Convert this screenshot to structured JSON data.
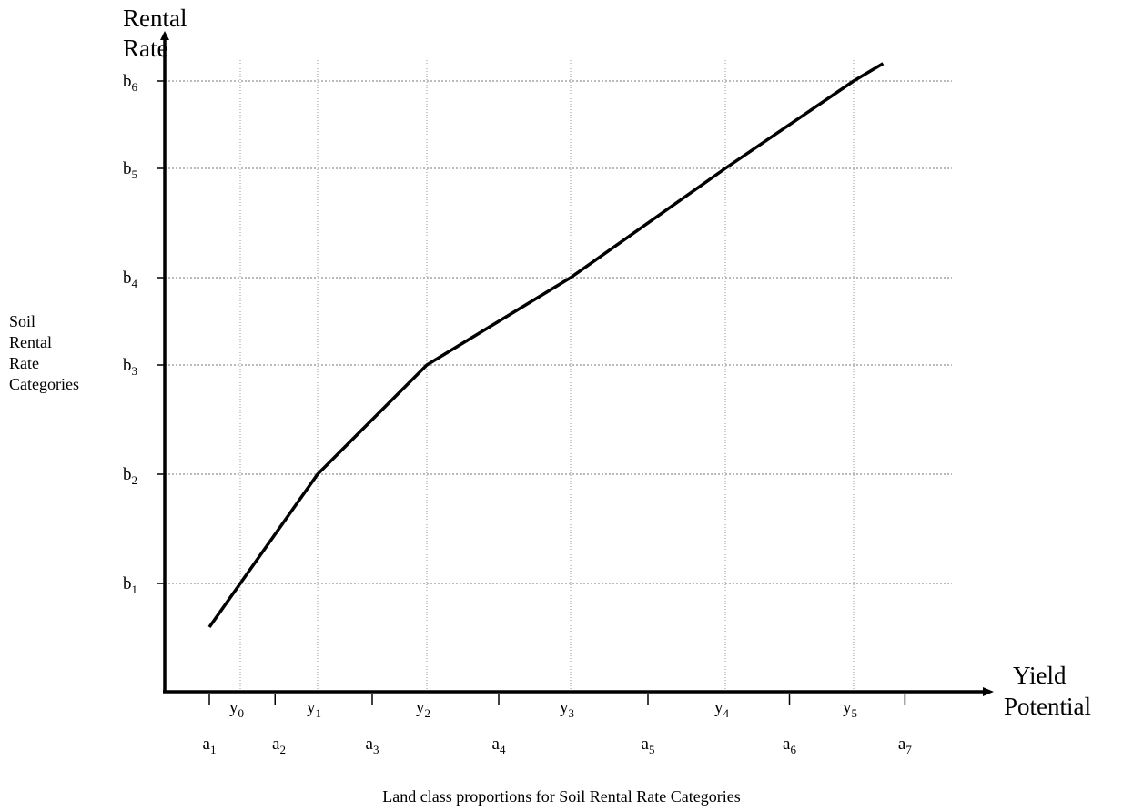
{
  "chart_data": {
    "type": "line",
    "y_axis_title_lines": [
      "Rental",
      "Rate"
    ],
    "x_axis_title_lines": [
      "Yield",
      "Potential"
    ],
    "side_label_lines": [
      "Soil",
      "Rental",
      "Rate",
      "Categories"
    ],
    "caption": "Land class proportions for Soil Rental Rate Categories",
    "y_categories": [
      {
        "base": "b",
        "sub": "1",
        "value": 1
      },
      {
        "base": "b",
        "sub": "2",
        "value": 2
      },
      {
        "base": "b",
        "sub": "3",
        "value": 3
      },
      {
        "base": "b",
        "sub": "4",
        "value": 4
      },
      {
        "base": "b",
        "sub": "5",
        "value": 5
      },
      {
        "base": "b",
        "sub": "6",
        "value": 6
      }
    ],
    "x_categories": [
      {
        "base": "y",
        "sub": "0",
        "value": 0
      },
      {
        "base": "y",
        "sub": "1",
        "value": 1
      },
      {
        "base": "y",
        "sub": "2",
        "value": 2
      },
      {
        "base": "y",
        "sub": "3",
        "value": 3
      },
      {
        "base": "y",
        "sub": "4",
        "value": 4
      },
      {
        "base": "y",
        "sub": "5",
        "value": 5
      }
    ],
    "interval_labels": [
      {
        "base": "a",
        "sub": "1",
        "value": -0.4
      },
      {
        "base": "a",
        "sub": "2",
        "value": 0.5
      },
      {
        "base": "a",
        "sub": "3",
        "value": 1.5
      },
      {
        "base": "a",
        "sub": "4",
        "value": 2.5
      },
      {
        "base": "a",
        "sub": "5",
        "value": 3.5
      },
      {
        "base": "a",
        "sub": "6",
        "value": 4.5
      },
      {
        "base": "a",
        "sub": "7",
        "value": 5.4
      }
    ],
    "interval_ticks": [
      -0.4,
      0.45,
      1.5,
      2.5,
      3.5,
      4.5,
      5.4
    ],
    "series": [
      {
        "points": [
          [
            -0.4,
            0.6
          ],
          [
            0,
            1
          ],
          [
            1,
            2
          ],
          [
            2,
            3
          ],
          [
            3,
            4
          ],
          [
            4,
            5
          ],
          [
            5,
            6
          ],
          [
            5.23,
            6.2
          ]
        ]
      }
    ],
    "xlim": [
      -1.0,
      6.3
    ],
    "ylim": [
      -0.0,
      6.5
    ],
    "grid": true
  }
}
